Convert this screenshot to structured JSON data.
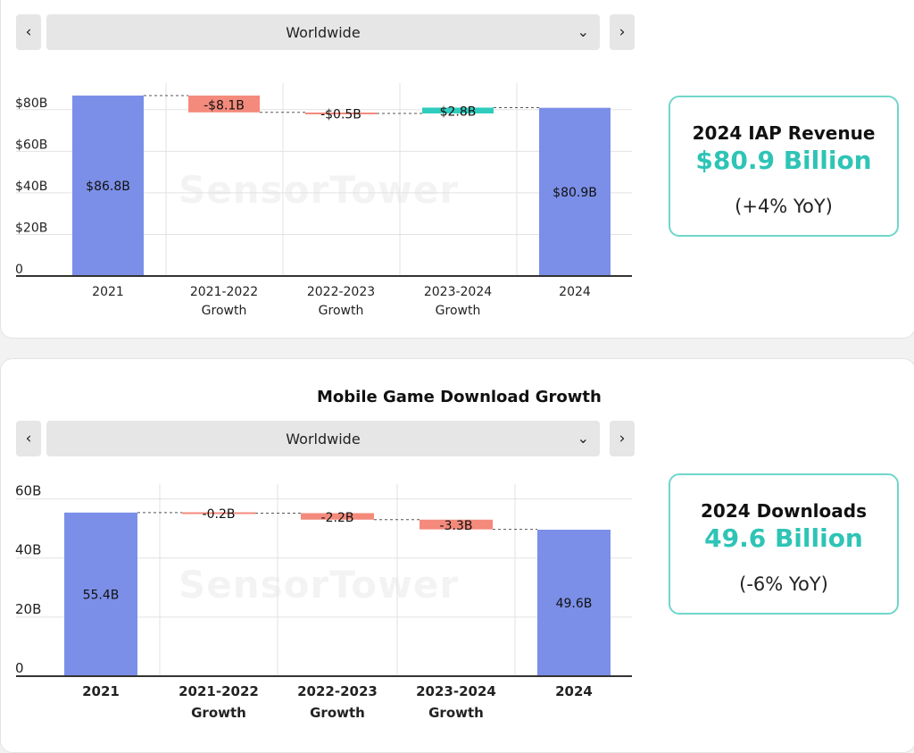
{
  "top": {
    "region": "Worldwide",
    "prev_icon": "chevron-left-icon",
    "next_icon": "chevron-right-icon",
    "kpi": {
      "title": "2024 IAP Revenue",
      "value": "$80.9 Billion",
      "change": "(+4% YoY)"
    }
  },
  "bottom": {
    "title": "Mobile Game Download Growth",
    "region": "Worldwide",
    "prev_icon": "chevron-left-icon",
    "next_icon": "chevron-right-icon",
    "kpi": {
      "title": "2024 Downloads",
      "value": "49.6 Billion",
      "change": "(-6% YoY)"
    }
  },
  "watermark": "SensorTower",
  "colors": {
    "total": "#7b8fe8",
    "decrease": "#f48a7c",
    "increase": "#2ecdbd",
    "kpi_accent": "#2ec4b6"
  },
  "chart_data": [
    {
      "type": "bar",
      "subtype": "waterfall",
      "categories": [
        [
          "2021"
        ],
        [
          "2021-2022",
          "Growth"
        ],
        [
          "2022-2023",
          "Growth"
        ],
        [
          "2023-2024",
          "Growth"
        ],
        [
          "2024"
        ]
      ],
      "values": [
        86.8,
        -8.1,
        -0.5,
        2.8,
        80.9
      ],
      "kinds": [
        "total",
        "delta",
        "delta",
        "delta",
        "total"
      ],
      "labels": [
        "$86.8B",
        "-$8.1B",
        "-$0.5B",
        "$2.8B",
        "$80.9B"
      ],
      "yticks": [
        0,
        20,
        40,
        60,
        80
      ],
      "ytick_labels": [
        "0",
        "$20B",
        "$40B",
        "$60B",
        "$80B"
      ],
      "ylim": [
        0,
        88.5
      ],
      "grid": true
    },
    {
      "type": "bar",
      "subtype": "waterfall",
      "categories": [
        [
          "2021"
        ],
        [
          "2021-2022",
          "Growth"
        ],
        [
          "2022-2023",
          "Growth"
        ],
        [
          "2023-2024",
          "Growth"
        ],
        [
          "2024"
        ]
      ],
      "values": [
        55.4,
        -0.2,
        -2.2,
        -3.3,
        49.6
      ],
      "kinds": [
        "total",
        "delta",
        "delta",
        "delta",
        "total"
      ],
      "labels": [
        "55.4B",
        "-0.2B",
        "-2.2B",
        "-3.3B",
        "49.6B"
      ],
      "yticks": [
        0,
        20,
        40,
        60
      ],
      "ytick_labels": [
        "0",
        "20B",
        "40B",
        "60B"
      ],
      "ylim": [
        0,
        62
      ],
      "grid": true
    }
  ]
}
